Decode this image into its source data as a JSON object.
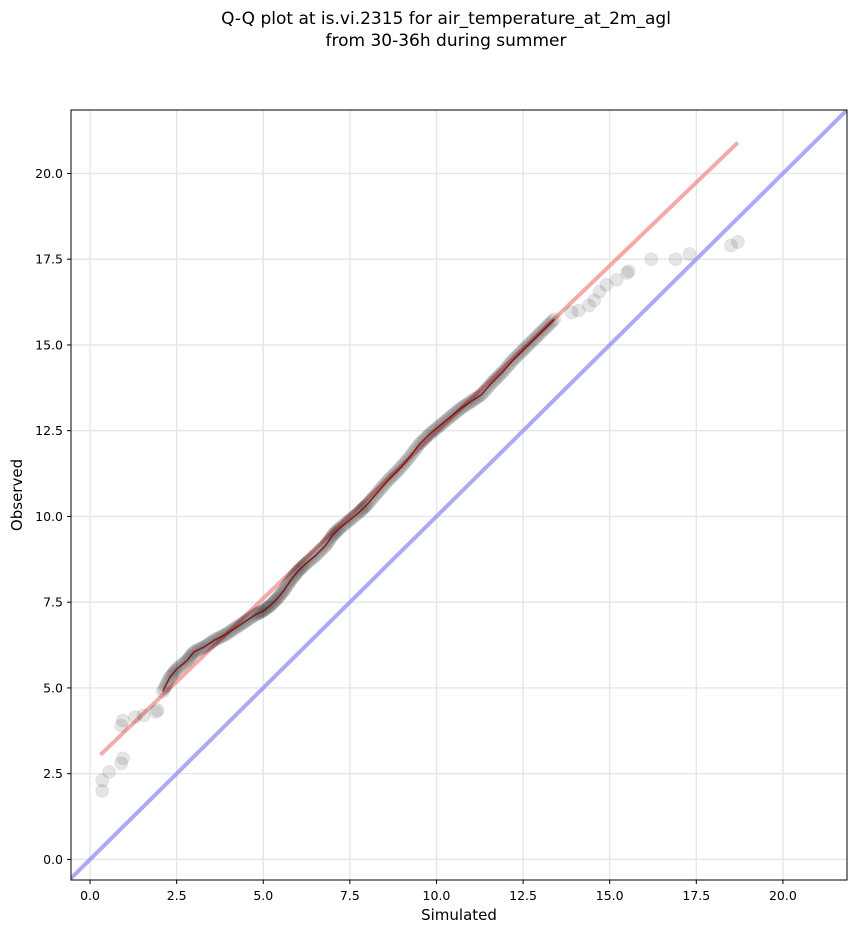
{
  "chart_data": {
    "type": "scatter",
    "title_line1": "Q-Q plot at is.vi.2315 for air_temperature_at_2m_agl",
    "title_line2": "from 30-36h during summer",
    "xlabel": "Simulated",
    "ylabel": "Observed",
    "xlim": [
      -0.55,
      21.85
    ],
    "ylim": [
      -0.6,
      21.85
    ],
    "x_ticks": [
      0.0,
      2.5,
      5.0,
      7.5,
      10.0,
      12.5,
      15.0,
      17.5,
      20.0
    ],
    "y_ticks": [
      0.0,
      2.5,
      5.0,
      7.5,
      10.0,
      12.5,
      15.0,
      17.5,
      20.0
    ],
    "x_tick_labels": [
      "0.0",
      "2.5",
      "5.0",
      "7.5",
      "10.0",
      "12.5",
      "15.0",
      "17.5",
      "20.0"
    ],
    "y_tick_labels": [
      "0.0",
      "2.5",
      "5.0",
      "7.5",
      "10.0",
      "12.5",
      "15.0",
      "17.5",
      "20.0"
    ],
    "grid": true,
    "colors": {
      "points": "#000000",
      "fit_line": "#f07c7c",
      "identity_line": "#8d8df5",
      "dense_core": "#8b0000"
    },
    "fit_line": {
      "x": [
        0.3,
        18.7
      ],
      "y": [
        3.05,
        20.9
      ]
    },
    "identity_line": {
      "x": [
        -0.55,
        21.85
      ],
      "y": [
        -0.55,
        21.85
      ]
    },
    "quantile_curve": [
      [
        2.1,
        4.9
      ],
      [
        2.3,
        5.3
      ],
      [
        2.5,
        5.55
      ],
      [
        2.8,
        5.8
      ],
      [
        3.0,
        6.05
      ],
      [
        3.3,
        6.2
      ],
      [
        3.6,
        6.4
      ],
      [
        3.9,
        6.55
      ],
      [
        4.2,
        6.75
      ],
      [
        4.5,
        6.95
      ],
      [
        4.8,
        7.15
      ],
      [
        5.0,
        7.25
      ],
      [
        5.2,
        7.4
      ],
      [
        5.4,
        7.6
      ],
      [
        5.6,
        7.85
      ],
      [
        5.8,
        8.15
      ],
      [
        6.0,
        8.4
      ],
      [
        6.2,
        8.6
      ],
      [
        6.5,
        8.85
      ],
      [
        6.8,
        9.15
      ],
      [
        7.0,
        9.45
      ],
      [
        7.2,
        9.65
      ],
      [
        7.5,
        9.9
      ],
      [
        7.8,
        10.15
      ],
      [
        8.0,
        10.35
      ],
      [
        8.3,
        10.7
      ],
      [
        8.6,
        11.05
      ],
      [
        8.9,
        11.35
      ],
      [
        9.2,
        11.7
      ],
      [
        9.5,
        12.1
      ],
      [
        9.8,
        12.4
      ],
      [
        10.1,
        12.65
      ],
      [
        10.4,
        12.9
      ],
      [
        10.7,
        13.15
      ],
      [
        11.0,
        13.35
      ],
      [
        11.3,
        13.55
      ],
      [
        11.6,
        13.9
      ],
      [
        11.9,
        14.2
      ],
      [
        12.2,
        14.55
      ],
      [
        12.5,
        14.85
      ],
      [
        12.8,
        15.15
      ],
      [
        13.1,
        15.45
      ],
      [
        13.4,
        15.75
      ]
    ],
    "outliers": [
      [
        0.35,
        2.0
      ],
      [
        0.35,
        2.3
      ],
      [
        0.55,
        2.55
      ],
      [
        0.9,
        2.8
      ],
      [
        0.95,
        2.95
      ],
      [
        0.9,
        3.9
      ],
      [
        0.95,
        4.05
      ],
      [
        1.3,
        4.15
      ],
      [
        1.55,
        4.2
      ],
      [
        1.9,
        4.3
      ],
      [
        1.95,
        4.35
      ],
      [
        13.9,
        15.95
      ],
      [
        14.1,
        16.0
      ],
      [
        14.4,
        16.15
      ],
      [
        14.55,
        16.3
      ],
      [
        14.7,
        16.55
      ],
      [
        14.9,
        16.75
      ],
      [
        15.2,
        16.9
      ],
      [
        15.5,
        17.1
      ],
      [
        15.55,
        17.15
      ],
      [
        16.2,
        17.5
      ],
      [
        16.9,
        17.5
      ],
      [
        17.3,
        17.65
      ],
      [
        18.5,
        17.9
      ],
      [
        18.7,
        18.0
      ]
    ]
  }
}
